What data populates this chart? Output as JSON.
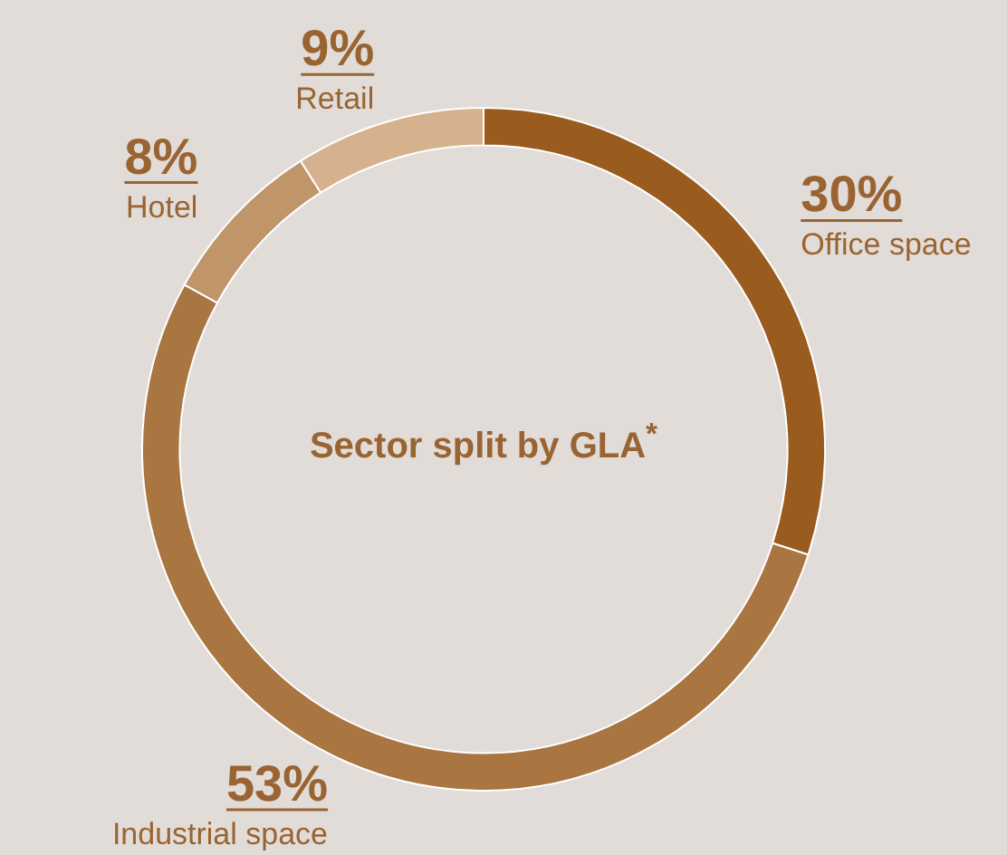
{
  "chart_data": {
    "type": "donut",
    "title": "Sector split by GLA$^{*}$",
    "categories": [
      "Office space",
      "Industrial space",
      "Hotel",
      "Retail"
    ],
    "values": [
      30,
      53,
      8,
      9
    ],
    "value_labels": [
      "30%",
      "53%",
      "8%",
      "9%"
    ],
    "colors": [
      "#9a5b1f",
      "#a97541",
      "#c0956a",
      "#d5b18e"
    ],
    "legend": false
  }
}
